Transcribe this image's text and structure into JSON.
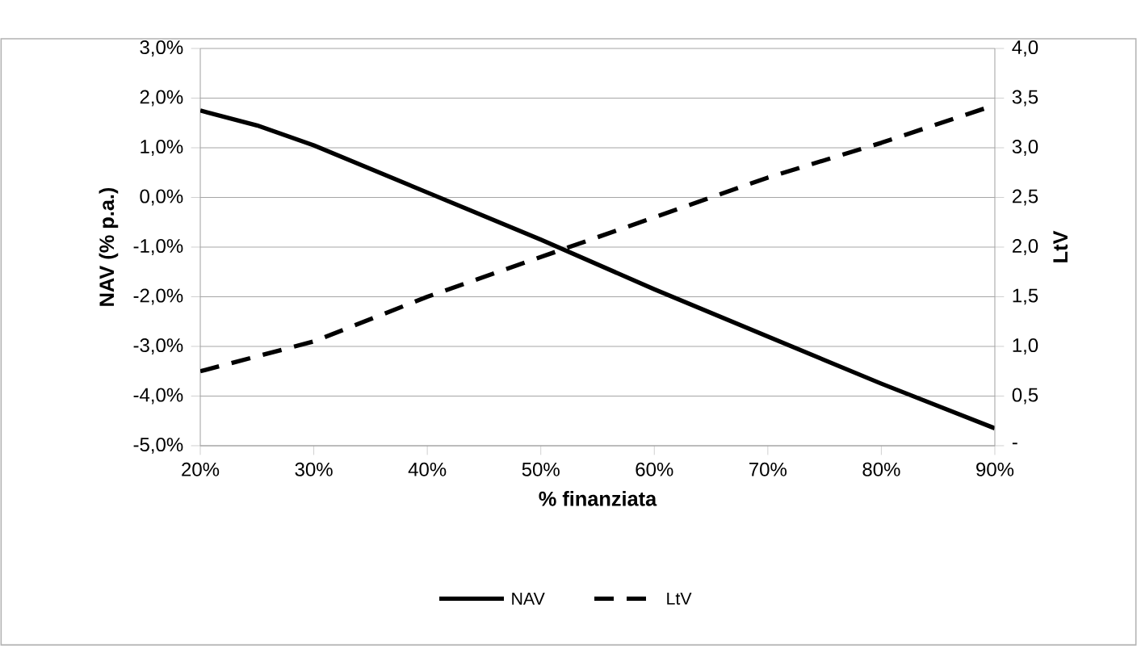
{
  "chart_data": {
    "type": "line",
    "xlabel": "% finanziata",
    "ylabel": "NAV (% p.a.)",
    "y2label": "LtV",
    "x": [
      20,
      25,
      30,
      40,
      50,
      60,
      70,
      80,
      90
    ],
    "series": [
      {
        "name": "NAV",
        "color": "#000000",
        "line_style": "solid",
        "values": [
          1.75,
          1.45,
          1.05,
          0.1,
          -0.85,
          -1.85,
          -2.8,
          -3.75,
          -4.65
        ]
      },
      {
        "name": "LtV",
        "color": "#000000",
        "line_style": "dashed",
        "axis": "y2",
        "values": [
          0.75,
          0.9,
          1.05,
          1.5,
          1.9,
          2.3,
          2.7,
          3.05,
          3.43
        ]
      }
    ],
    "xlim": [
      20,
      90
    ],
    "xticks": [
      {
        "value": 20,
        "label": "20%"
      },
      {
        "value": 30,
        "label": "30%"
      },
      {
        "value": 40,
        "label": "40%"
      },
      {
        "value": 50,
        "label": "50%"
      },
      {
        "value": 60,
        "label": "60%"
      },
      {
        "value": 70,
        "label": "70%"
      },
      {
        "value": 80,
        "label": "80%"
      },
      {
        "value": 90,
        "label": "90%"
      }
    ],
    "ylim": [
      -5,
      3
    ],
    "yticks": [
      {
        "value": -5,
        "label": "-5,0%"
      },
      {
        "value": -4,
        "label": "-4,0%"
      },
      {
        "value": -3,
        "label": "-3,0%"
      },
      {
        "value": -2,
        "label": "-2,0%"
      },
      {
        "value": -1,
        "label": "-1,0%"
      },
      {
        "value": 0,
        "label": "0,0%"
      },
      {
        "value": 1,
        "label": "1,0%"
      },
      {
        "value": 2,
        "label": "2,0%"
      },
      {
        "value": 3,
        "label": "3,0%"
      }
    ],
    "y2lim": [
      0,
      4
    ],
    "y2ticks": [
      {
        "value": 0,
        "label": "-"
      },
      {
        "value": 0.5,
        "label": "0,5"
      },
      {
        "value": 1,
        "label": "1,0"
      },
      {
        "value": 1.5,
        "label": "1,5"
      },
      {
        "value": 2,
        "label": "2,0"
      },
      {
        "value": 2.5,
        "label": "2,5"
      },
      {
        "value": 3,
        "label": "3,0"
      },
      {
        "value": 3.5,
        "label": "3,5"
      },
      {
        "value": 4,
        "label": "4,0"
      }
    ],
    "grid": "y",
    "legend": "bottom",
    "marker": "none"
  }
}
